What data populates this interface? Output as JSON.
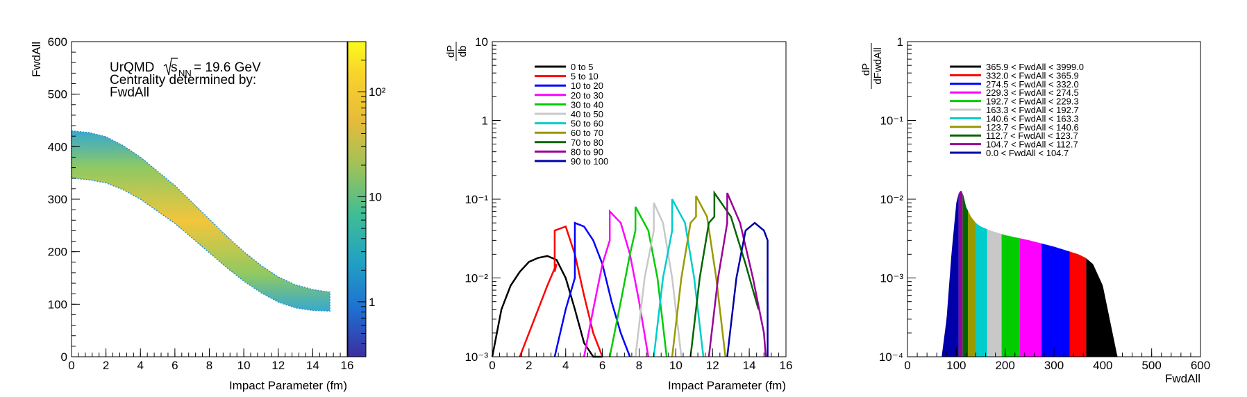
{
  "chart_data": [
    {
      "type": "heatmap",
      "xlabel": "Impact Parameter (fm)",
      "ylabel": "FwdAll",
      "xlim": [
        0,
        16
      ],
      "ylim": [
        0,
        600
      ],
      "xticks": [
        "0",
        "2",
        "4",
        "6",
        "8",
        "10",
        "12",
        "14",
        "16"
      ],
      "yticks": [
        "0",
        "100",
        "200",
        "300",
        "400",
        "500",
        "600"
      ],
      "annotation": {
        "line1_prefix": "UrQMD ",
        "sqrt": "s",
        "sub": "NN",
        "line1_suffix": " = 19.6 GeV",
        "line2": "Centrality determined by:",
        "line3": "FwdAll"
      },
      "colorbar": {
        "scale": "log",
        "range": [
          0.3,
          300
        ],
        "ticks": [
          "1",
          "10",
          "10²"
        ]
      },
      "band": {
        "b": [
          0,
          1,
          2,
          3,
          4,
          5,
          6,
          7,
          8,
          9,
          10,
          11,
          12,
          13,
          14,
          15
        ],
        "center": [
          385,
          382,
          375,
          360,
          340,
          315,
          290,
          260,
          230,
          200,
          172,
          148,
          128,
          115,
          108,
          105
        ],
        "halfwidth": [
          45,
          45,
          44,
          42,
          40,
          38,
          36,
          34,
          32,
          30,
          28,
          26,
          24,
          22,
          20,
          18
        ]
      }
    },
    {
      "type": "line",
      "xlabel": "Impact Parameter (fm)",
      "ylabel_num": "dP",
      "ylabel_den": "db",
      "xlim": [
        0,
        16
      ],
      "ylim": [
        0.001,
        10
      ],
      "yscale": "log",
      "xticks": [
        "0",
        "2",
        "4",
        "6",
        "8",
        "10",
        "12",
        "14",
        "16"
      ],
      "yticks": [
        "10⁻³",
        "10⁻²",
        "10⁻¹",
        "1",
        "10"
      ],
      "legend": "top-left",
      "series": [
        {
          "name": "0 to 5",
          "color": "#000000",
          "x": [
            0,
            0.5,
            1,
            1.5,
            2,
            2.5,
            3,
            3.5,
            4,
            4.5,
            5,
            5.5,
            6
          ],
          "y": [
            0.001,
            0.004,
            0.008,
            0.012,
            0.016,
            0.018,
            0.019,
            0.017,
            0.01,
            0.004,
            0.0015,
            0.001,
            0.001
          ]
        },
        {
          "name": "5 to 10",
          "color": "#ff0000",
          "x": [
            1.5,
            2,
            2.5,
            3,
            3.5,
            3.4,
            3.4,
            4,
            4.5,
            5,
            5.5,
            6
          ],
          "y": [
            0.001,
            0.002,
            0.004,
            0.008,
            0.015,
            0.012,
            0.04,
            0.045,
            0.02,
            0.006,
            0.002,
            0.001
          ]
        },
        {
          "name": "10 to 20",
          "color": "#0000ff",
          "x": [
            3.4,
            4,
            4.5,
            4.5,
            5,
            5.5,
            6,
            6.5,
            7,
            7.5
          ],
          "y": [
            0.001,
            0.004,
            0.01,
            0.05,
            0.045,
            0.03,
            0.015,
            0.005,
            0.002,
            0.001
          ]
        },
        {
          "name": "20 to 30",
          "color": "#ff00ff",
          "x": [
            5,
            5.5,
            6,
            6.4,
            6.4,
            7,
            7.5,
            8,
            8.5
          ],
          "y": [
            0.001,
            0.004,
            0.015,
            0.03,
            0.07,
            0.05,
            0.02,
            0.005,
            0.001
          ]
        },
        {
          "name": "30 to 40",
          "color": "#00cc00",
          "x": [
            6.4,
            7,
            7.5,
            7.8,
            7.8,
            8.5,
            9,
            9.5
          ],
          "y": [
            0.001,
            0.005,
            0.02,
            0.04,
            0.08,
            0.04,
            0.01,
            0.001
          ]
        },
        {
          "name": "40 to 50",
          "color": "#c8c8c8",
          "x": [
            7.8,
            8.3,
            8.8,
            8.8,
            9.3,
            9.8,
            10.3
          ],
          "y": [
            0.001,
            0.01,
            0.04,
            0.09,
            0.05,
            0.01,
            0.001
          ]
        },
        {
          "name": "50 to 60",
          "color": "#00cccc",
          "x": [
            8.8,
            9.3,
            9.8,
            9.8,
            10.5,
            11,
            11.5
          ],
          "y": [
            0.001,
            0.01,
            0.04,
            0.1,
            0.05,
            0.01,
            0.001
          ]
        },
        {
          "name": "60 to 70",
          "color": "#999900",
          "x": [
            9.8,
            10.3,
            10.8,
            11.1,
            11.1,
            11.7,
            12.2,
            12.7
          ],
          "y": [
            0.001,
            0.01,
            0.05,
            0.06,
            0.11,
            0.06,
            0.01,
            0.001
          ]
        },
        {
          "name": "70 to 80",
          "color": "#006600",
          "x": [
            10.8,
            11.3,
            11.8,
            12.1,
            12.1,
            13,
            13.8,
            14.5
          ],
          "y": [
            0.001,
            0.01,
            0.05,
            0.06,
            0.12,
            0.06,
            0.015,
            0.004
          ]
        },
        {
          "name": "80 to 90",
          "color": "#990099",
          "x": [
            11.8,
            12.3,
            12.8,
            12.8,
            13.5,
            14.2,
            14.8,
            14.9
          ],
          "y": [
            0.001,
            0.01,
            0.05,
            0.12,
            0.05,
            0.01,
            0.002,
            0.001
          ]
        },
        {
          "name": "90 to 100",
          "color": "#0000aa",
          "x": [
            12.8,
            13.3,
            13.8,
            14.3,
            14.8,
            15,
            15
          ],
          "y": [
            0.001,
            0.01,
            0.04,
            0.05,
            0.04,
            0.03,
            0.001
          ]
        }
      ]
    },
    {
      "type": "bar",
      "xlabel": "FwdAll",
      "ylabel_num": "dP",
      "ylabel_den": "dFwdAll",
      "xlim": [
        0,
        600
      ],
      "ylim": [
        0.0001,
        1
      ],
      "yscale": "log",
      "xticks": [
        "0",
        "100",
        "200",
        "300",
        "400",
        "500",
        "600"
      ],
      "yticks": [
        "10⁻⁴",
        "10⁻³",
        "10⁻²",
        "10⁻¹",
        "1"
      ],
      "legend": "top-left",
      "series": [
        {
          "name": "365.9 < FwdAll < 3999.0",
          "color": "#000000"
        },
        {
          "name": "332.0 < FwdAll < 365.9",
          "color": "#ff0000"
        },
        {
          "name": "274.5 < FwdAll < 332.0",
          "color": "#0000ff"
        },
        {
          "name": "229.3 < FwdAll < 274.5",
          "color": "#ff00ff"
        },
        {
          "name": "192.7 < FwdAll < 229.3",
          "color": "#00cc00"
        },
        {
          "name": "163.3 < FwdAll < 192.7",
          "color": "#c8c8c8"
        },
        {
          "name": "140.6 < FwdAll < 163.3",
          "color": "#00cccc"
        },
        {
          "name": "123.7 < FwdAll < 140.6",
          "color": "#999900"
        },
        {
          "name": "112.7 < FwdAll < 123.7",
          "color": "#006600"
        },
        {
          "name": "104.7 < FwdAll < 112.7",
          "color": "#990099"
        },
        {
          "name": "0.0 < FwdAll < 104.7",
          "color": "#0000aa"
        }
      ],
      "distribution": {
        "x": [
          70,
          80,
          90,
          100,
          105,
          110,
          115,
          120,
          130,
          140,
          150,
          170,
          200,
          250,
          300,
          350,
          365,
          380,
          400,
          420,
          430
        ],
        "y": [
          0.0001,
          0.0003,
          0.002,
          0.009,
          0.012,
          0.013,
          0.011,
          0.008,
          0.006,
          0.005,
          0.0045,
          0.004,
          0.0035,
          0.003,
          0.0025,
          0.002,
          0.0018,
          0.0015,
          0.0008,
          0.0002,
          0.0001
        ]
      }
    }
  ]
}
